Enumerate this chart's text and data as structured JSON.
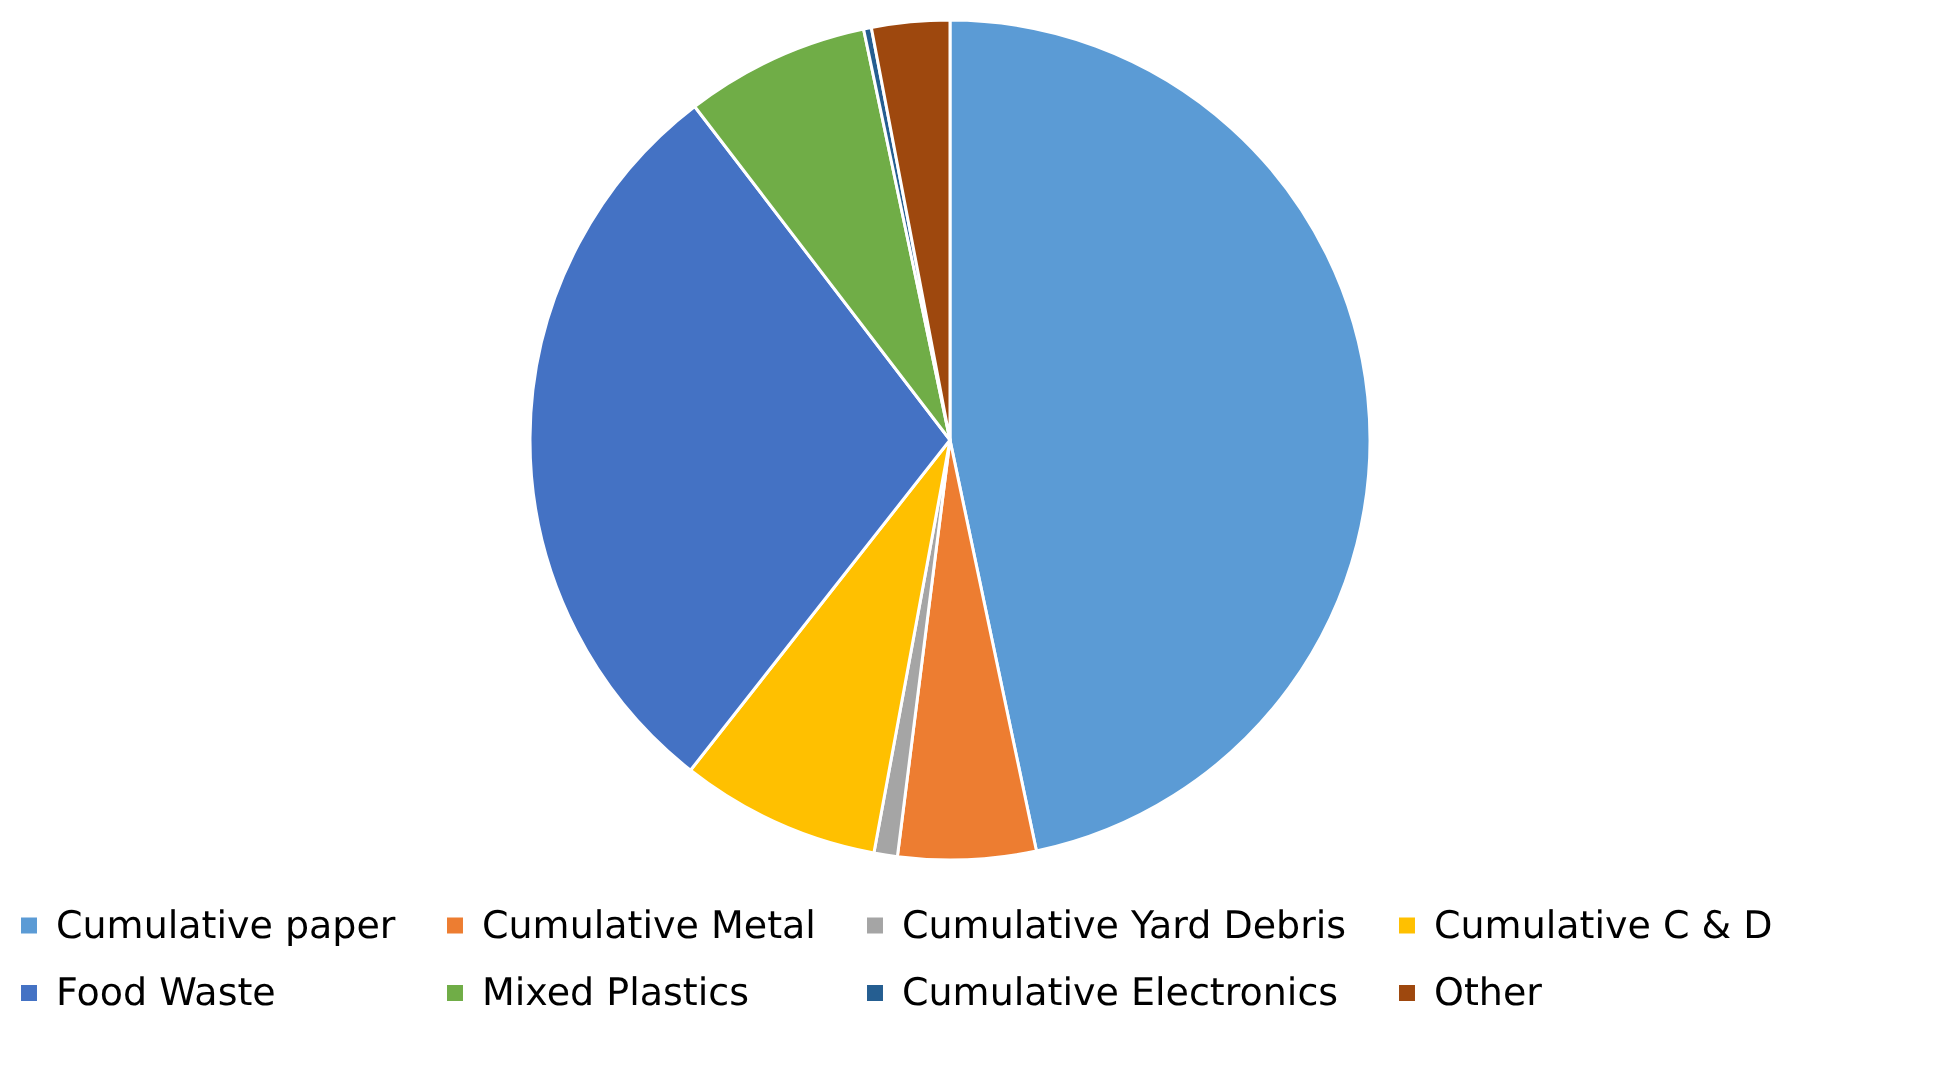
{
  "chart_data": {
    "type": "pie",
    "legend": "bottom",
    "categories": [
      "Cumulative paper",
      "Cumulative Metal",
      "Cumulative Yard Debris",
      "Cumulative C & D",
      "Food Waste",
      "Mixed Plastics",
      "Cumulative Electronics",
      "Other"
    ],
    "values": [
      46.7,
      5.3,
      0.9,
      7.7,
      29.0,
      7.1,
      0.3,
      3.0
    ],
    "colors": [
      "#5b9bd5",
      "#ed7d31",
      "#a5a5a5",
      "#ffc000",
      "#4472c4",
      "#70ad47",
      "#255e91",
      "#9e480e"
    ]
  }
}
